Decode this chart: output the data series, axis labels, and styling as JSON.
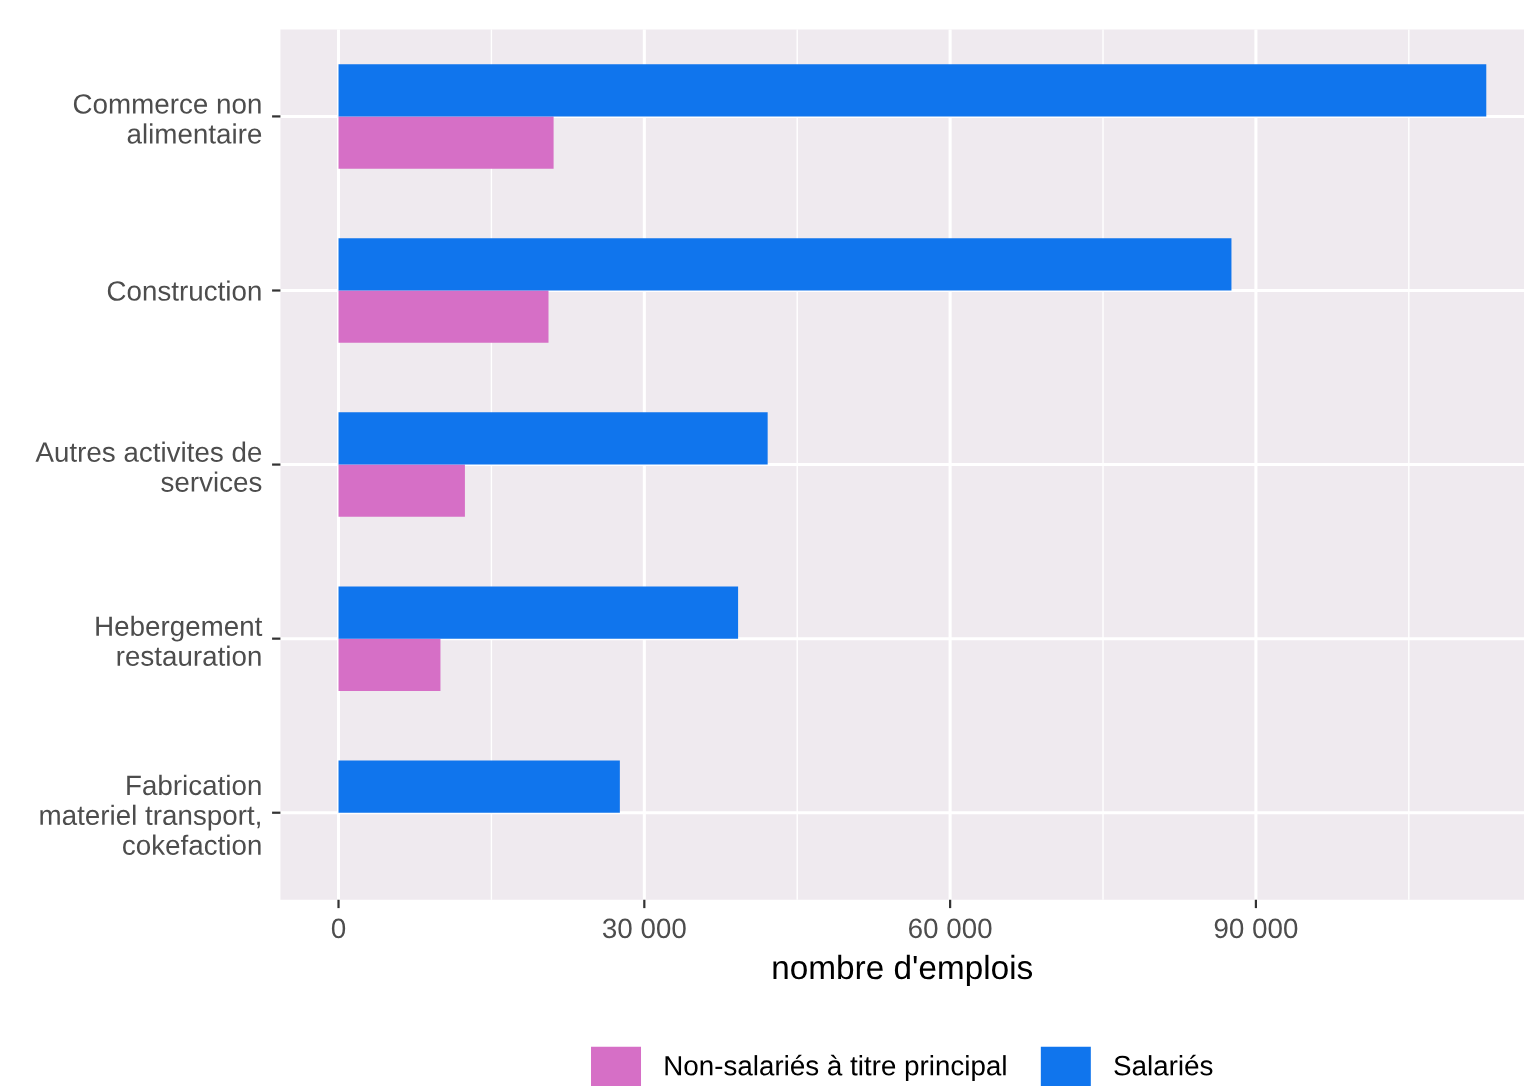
{
  "chart_data": {
    "type": "bar",
    "orientation": "horizontal",
    "xlabel": "nombre d'emplois",
    "categories": [
      "Commerce non\nalimentaire",
      "Construction",
      "Autres activites de\nservices",
      "Hebergement\nrestauration",
      "Fabrication\nmateriel transport,\ncokefaction"
    ],
    "series": [
      {
        "name": "Non-salariés à titre principal",
        "color": "#d66fc6",
        "values": [
          21100,
          20600,
          12400,
          10000,
          null
        ]
      },
      {
        "name": "Salariés",
        "color": "#1075ed",
        "values": [
          112600,
          87600,
          42100,
          39200,
          27600
        ]
      }
    ],
    "xlim": [
      -5700,
      116300
    ],
    "xticks": [
      {
        "value": 0,
        "label": "0"
      },
      {
        "value": 30000,
        "label": "30 000"
      },
      {
        "value": 60000,
        "label": "60 000"
      },
      {
        "value": 90000,
        "label": "90 000"
      }
    ],
    "grid": true,
    "legend": "bottom"
  }
}
